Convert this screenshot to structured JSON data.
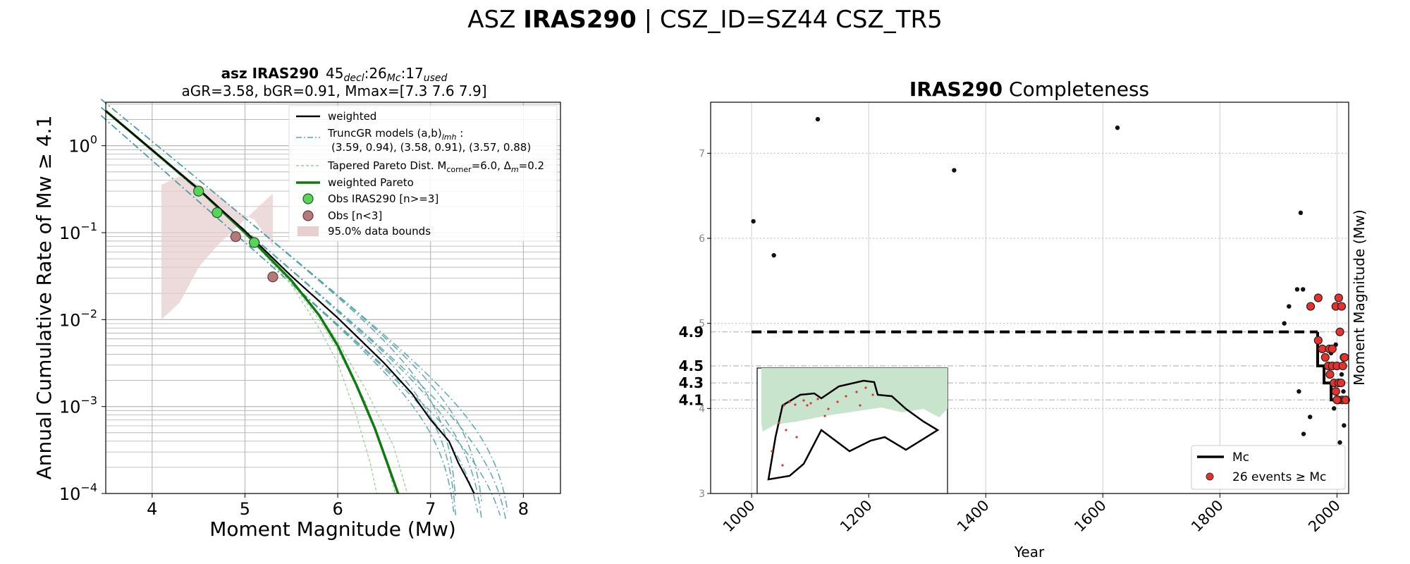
{
  "suptitle": {
    "prefix": "ASZ ",
    "bold": "IRAS290",
    "suffix": " | CSZ_ID=SZ44 CSZ_TR5"
  },
  "chart_data": [
    {
      "type": "line",
      "title_line1": {
        "bold": "asz IRAS290",
        "a": "45",
        "a_sub": "decl",
        "b": ":26",
        "b_sub": "Mc",
        "c": ":17",
        "c_sub": "used"
      },
      "title_line2": "aGR=3.58,  bGR=0.91, Mmax=[7.3 7.6 7.9]",
      "xlabel": "Moment Magnitude (Mw)",
      "ylabel": "Annual Cumulative Rate of Mw ≥ 4.1",
      "xlim": [
        3.5,
        8.4
      ],
      "ylim_log10": [
        -4,
        0.5
      ],
      "xticks": [
        "4",
        "5",
        "6",
        "7",
        "8"
      ],
      "yticks": [
        {
          "base": "10",
          "exp": "0"
        },
        {
          "base": "10",
          "exp": "−1"
        },
        {
          "base": "10",
          "exp": "−2"
        },
        {
          "base": "10",
          "exp": "−3"
        },
        {
          "base": "10",
          "exp": "−4"
        }
      ],
      "legend": {
        "placement": "top-right",
        "entries": [
          {
            "label": "weighted"
          },
          {
            "label": "TruncGR models (a,b)",
            "sub": "lmh",
            "after": " :"
          },
          {
            "label": "(3.59, 0.94), (3.58, 0.91), (3.57, 0.88)"
          },
          {
            "label": "Tapered Pareto Dist. M",
            "sub": "corner",
            "after": "=6.0, Δ",
            "sub2": "m",
            "after2": "=0.2"
          },
          {
            "label": "weighted Pareto"
          },
          {
            "label": "Obs IRAS290 [n>=3]"
          },
          {
            "label": "Obs [n<3]"
          },
          {
            "label": "95.0% data bounds"
          }
        ]
      },
      "truncgr_models": [
        {
          "a": 3.59,
          "b": 0.94,
          "mmax": [
            7.3,
            7.6,
            7.9
          ]
        },
        {
          "a": 3.58,
          "b": 0.91,
          "mmax": [
            7.3,
            7.6,
            7.9
          ]
        },
        {
          "a": 3.57,
          "b": 0.88,
          "mmax": [
            7.3,
            7.6,
            7.9
          ]
        }
      ],
      "weighted": {
        "x": [
          3.5,
          4.0,
          4.5,
          5.0,
          5.5,
          6.0,
          6.5,
          6.8,
          7.0,
          7.2,
          7.3,
          7.4,
          7.47
        ],
        "log10y": [
          0.4,
          -0.05,
          -0.5,
          -0.98,
          -1.5,
          -1.98,
          -2.5,
          -2.85,
          -3.15,
          -3.4,
          -3.65,
          -3.85,
          -4.0
        ]
      },
      "weighted_pareto": {
        "x": [
          3.5,
          4.0,
          4.5,
          5.0,
          5.5,
          5.8,
          6.0,
          6.2,
          6.4,
          6.55,
          6.65
        ],
        "log10y": [
          0.4,
          -0.05,
          -0.5,
          -1.0,
          -1.55,
          -1.95,
          -2.3,
          -2.75,
          -3.25,
          -3.7,
          -4.0
        ]
      },
      "tapered_pareto": [
        {
          "x": [
            5.0,
            5.5,
            5.8,
            6.0,
            6.2,
            6.35,
            6.42
          ],
          "log10y": [
            -1.0,
            -1.6,
            -2.1,
            -2.5,
            -3.1,
            -3.65,
            -4.0
          ]
        },
        {
          "x": [
            5.0,
            5.5,
            5.8,
            6.0,
            6.3,
            6.5,
            6.62
          ],
          "log10y": [
            -1.0,
            -1.58,
            -2.0,
            -2.35,
            -2.95,
            -3.55,
            -4.0
          ]
        },
        {
          "x": [
            5.0,
            5.5,
            5.8,
            6.0,
            6.3,
            6.6,
            6.75
          ],
          "log10y": [
            -1.0,
            -1.56,
            -1.95,
            -2.25,
            -2.8,
            -3.45,
            -4.0
          ]
        }
      ],
      "obs_ge3": {
        "x": [
          4.5,
          4.7,
          5.1
        ],
        "y": [
          0.3,
          0.17,
          0.077
        ]
      },
      "obs_lt3": {
        "x": [
          4.9,
          5.3
        ],
        "y": [
          0.09,
          0.031
        ]
      },
      "data_bounds_95": {
        "x": [
          4.1,
          4.3,
          4.5,
          4.7,
          4.9,
          5.1,
          5.3,
          5.3,
          5.1,
          4.9,
          4.7,
          4.5,
          4.3,
          4.1
        ],
        "log10y_upper": [
          -0.45,
          -0.35,
          -0.45,
          -0.55,
          -0.75,
          -0.85,
          -1.15
        ],
        "log10y_lower": [
          -2.0,
          -1.8,
          -1.4,
          -1.15,
          -0.95,
          -0.75,
          -0.55
        ]
      }
    },
    {
      "type": "scatter",
      "title": {
        "bold": "IRAS290",
        "rest": " Completeness"
      },
      "xlabel": "Year",
      "ylabel": "Moment Magnitude (Mw)",
      "xlim": [
        930,
        2020
      ],
      "ylim": [
        3,
        7.6
      ],
      "xticks": [
        "1000",
        "1200",
        "1400",
        "1600",
        "1800",
        "2000"
      ],
      "yticks": [
        "3",
        "4",
        "5",
        "6",
        "7"
      ],
      "mc_labels": [
        "4.9",
        "4.5",
        "4.3",
        "4.1"
      ],
      "mc_step": {
        "year": [
          1000,
          1967,
          1967,
          1978,
          1978,
          1990,
          1990,
          2012
        ],
        "mc": [
          4.9,
          4.9,
          4.5,
          4.5,
          4.3,
          4.3,
          4.1,
          4.1
        ]
      },
      "mc_dashed_until": 1967,
      "events_black": [
        {
          "year": 1003,
          "mw": 6.2
        },
        {
          "year": 1038,
          "mw": 5.8
        },
        {
          "year": 1113,
          "mw": 7.4
        },
        {
          "year": 1346,
          "mw": 6.8
        },
        {
          "year": 1625,
          "mw": 7.3
        },
        {
          "year": 1938,
          "mw": 6.3
        },
        {
          "year": 1910,
          "mw": 5.0
        },
        {
          "year": 1918,
          "mw": 5.2
        },
        {
          "year": 1932,
          "mw": 5.4
        },
        {
          "year": 1942,
          "mw": 5.4
        },
        {
          "year": 1935,
          "mw": 4.2
        },
        {
          "year": 1954,
          "mw": 3.9
        },
        {
          "year": 1943,
          "mw": 3.7
        },
        {
          "year": 1995,
          "mw": 4.0
        },
        {
          "year": 2005,
          "mw": 3.6
        },
        {
          "year": 2012,
          "mw": 3.8
        },
        {
          "year": 2011,
          "mw": 4.2
        },
        {
          "year": 2008,
          "mw": 4.4
        },
        {
          "year": 1990,
          "mw": 4.65
        },
        {
          "year": 1998,
          "mw": 4.75
        },
        {
          "year": 2001,
          "mw": 4.5
        }
      ],
      "events_red": [
        {
          "year": 1955,
          "mw": 5.2
        },
        {
          "year": 1968,
          "mw": 5.3
        },
        {
          "year": 1968,
          "mw": 4.8
        },
        {
          "year": 1975,
          "mw": 4.7
        },
        {
          "year": 1980,
          "mw": 4.6
        },
        {
          "year": 1987,
          "mw": 4.7
        },
        {
          "year": 1985,
          "mw": 4.5
        },
        {
          "year": 1992,
          "mw": 4.7
        },
        {
          "year": 1992,
          "mw": 4.5
        },
        {
          "year": 1998,
          "mw": 5.2
        },
        {
          "year": 2003,
          "mw": 5.3
        },
        {
          "year": 2008,
          "mw": 5.2
        },
        {
          "year": 2005,
          "mw": 4.9
        },
        {
          "year": 1988,
          "mw": 4.4
        },
        {
          "year": 1995,
          "mw": 4.3
        },
        {
          "year": 2000,
          "mw": 4.5
        },
        {
          "year": 2012,
          "mw": 4.6
        },
        {
          "year": 2003,
          "mw": 4.3
        },
        {
          "year": 1998,
          "mw": 4.2
        },
        {
          "year": 2009,
          "mw": 4.1
        },
        {
          "year": 2002,
          "mw": 4.1
        },
        {
          "year": 2013,
          "mw": 4.6
        },
        {
          "year": 2010,
          "mw": 4.5
        },
        {
          "year": 2007,
          "mw": 4.3
        },
        {
          "year": 2015,
          "mw": 4.1
        },
        {
          "year": 2000,
          "mw": 4.1
        }
      ],
      "legend": {
        "placement": "lower-right",
        "mc_label": "Mc",
        "events_label": "26 events ≥ Mc"
      },
      "colors": {
        "red": "#e8312a",
        "black": "#111111",
        "land": "#c9e4cc"
      }
    }
  ]
}
